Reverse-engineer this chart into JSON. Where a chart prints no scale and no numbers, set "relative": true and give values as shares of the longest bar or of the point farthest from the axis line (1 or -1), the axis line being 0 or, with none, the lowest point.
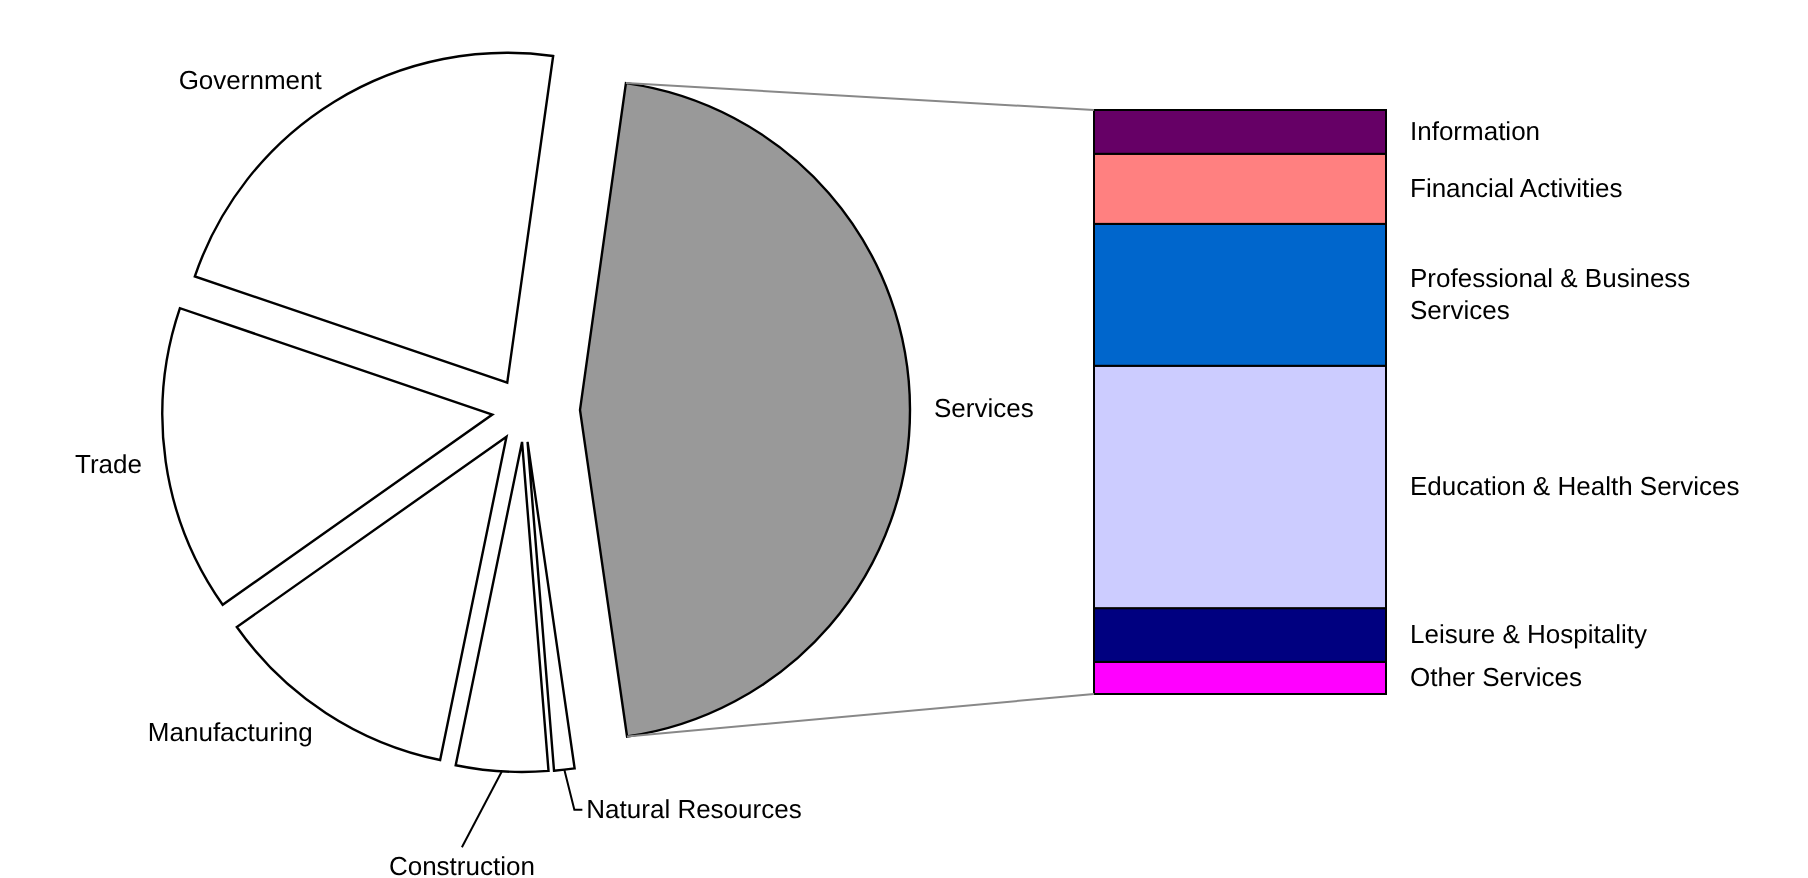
{
  "chart_data": [
    {
      "type": "pie",
      "categories": [
        "Services",
        "Natural Resources",
        "Construction",
        "Manufacturing",
        "Trade",
        "Government"
      ],
      "values": [
        45.5,
        1,
        4.5,
        12,
        15,
        22
      ],
      "colors": [
        "#999999",
        "#ffffff",
        "#ffffff",
        "#ffffff",
        "#ffffff",
        "#ffffff"
      ]
    },
    {
      "type": "bar",
      "stacked": true,
      "relative": true,
      "categories": [
        null
      ],
      "series": [
        {
          "name": "Other Services",
          "color": "#ff00ff",
          "values": [
            0.055
          ]
        },
        {
          "name": "Leisure & Hospitality",
          "color": "#000080",
          "values": [
            0.092
          ]
        },
        {
          "name": "Education & Health Services",
          "color": "#ccccff",
          "values": [
            0.415
          ]
        },
        {
          "name": "Professional & Business Services",
          "color": "#0066cc",
          "values": [
            0.243
          ]
        },
        {
          "name": "Financial Activities",
          "color": "#ff8080",
          "values": [
            0.12
          ]
        },
        {
          "name": "Information",
          "color": "#660066",
          "values": [
            0.075
          ]
        }
      ]
    }
  ]
}
